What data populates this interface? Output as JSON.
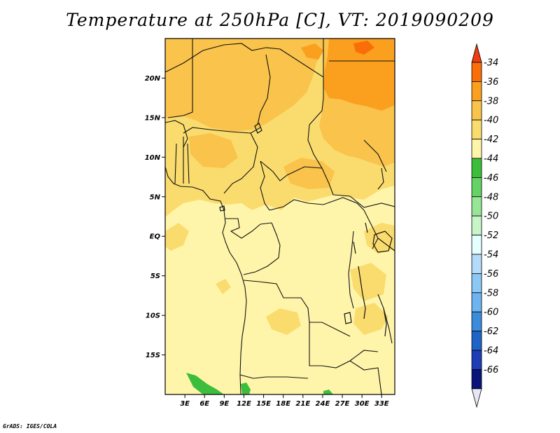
{
  "title": "Temperature at 250hPa [C], VT: 2019090209",
  "credit": "GrADS: IGES/COLA",
  "map": {
    "lon_range": [
      0,
      35
    ],
    "lat_range": [
      -20,
      25
    ],
    "lat_ticks": [
      {
        "value": 20,
        "label": "20N"
      },
      {
        "value": 15,
        "label": "15N"
      },
      {
        "value": 10,
        "label": "10N"
      },
      {
        "value": 5,
        "label": "5N"
      },
      {
        "value": 0,
        "label": "EQ"
      },
      {
        "value": -5,
        "label": "5S"
      },
      {
        "value": -10,
        "label": "10S"
      },
      {
        "value": -15,
        "label": "15S"
      }
    ],
    "lon_ticks": [
      {
        "value": 3,
        "label": "3E"
      },
      {
        "value": 6,
        "label": "6E"
      },
      {
        "value": 9,
        "label": "9E"
      },
      {
        "value": 12,
        "label": "12E"
      },
      {
        "value": 15,
        "label": "15E"
      },
      {
        "value": 18,
        "label": "18E"
      },
      {
        "value": 21,
        "label": "21E"
      },
      {
        "value": 24,
        "label": "24E"
      },
      {
        "value": 27,
        "label": "27E"
      },
      {
        "value": 30,
        "label": "30E"
      },
      {
        "value": 33,
        "label": "33E"
      }
    ]
  },
  "colorbar": {
    "levels": [
      "-34",
      "-36",
      "-38",
      "-40",
      "-42",
      "-44",
      "-46",
      "-48",
      "-50",
      "-52",
      "-54",
      "-56",
      "-58",
      "-60",
      "-62",
      "-64",
      "-66"
    ],
    "colors": [
      "#f03c15",
      "#fa6e0a",
      "#faa01e",
      "#fac34b",
      "#fadc6e",
      "#fff5aa",
      "#3cbe3c",
      "#64d264",
      "#96e696",
      "#c8f5c8",
      "#e6ffff",
      "#b4dcfa",
      "#8cc8f5",
      "#6eb4f0",
      "#3c8cdc",
      "#1e64c8",
      "#1e3cb4",
      "#0a1478",
      "#e6e6f5"
    ]
  },
  "colors": {
    "bg_field": "#fff5aa",
    "field_42_40": "#fadc6e",
    "field_40_38": "#fac34b",
    "field_38_36": "#faa01e",
    "green": "#3cbe3c"
  }
}
